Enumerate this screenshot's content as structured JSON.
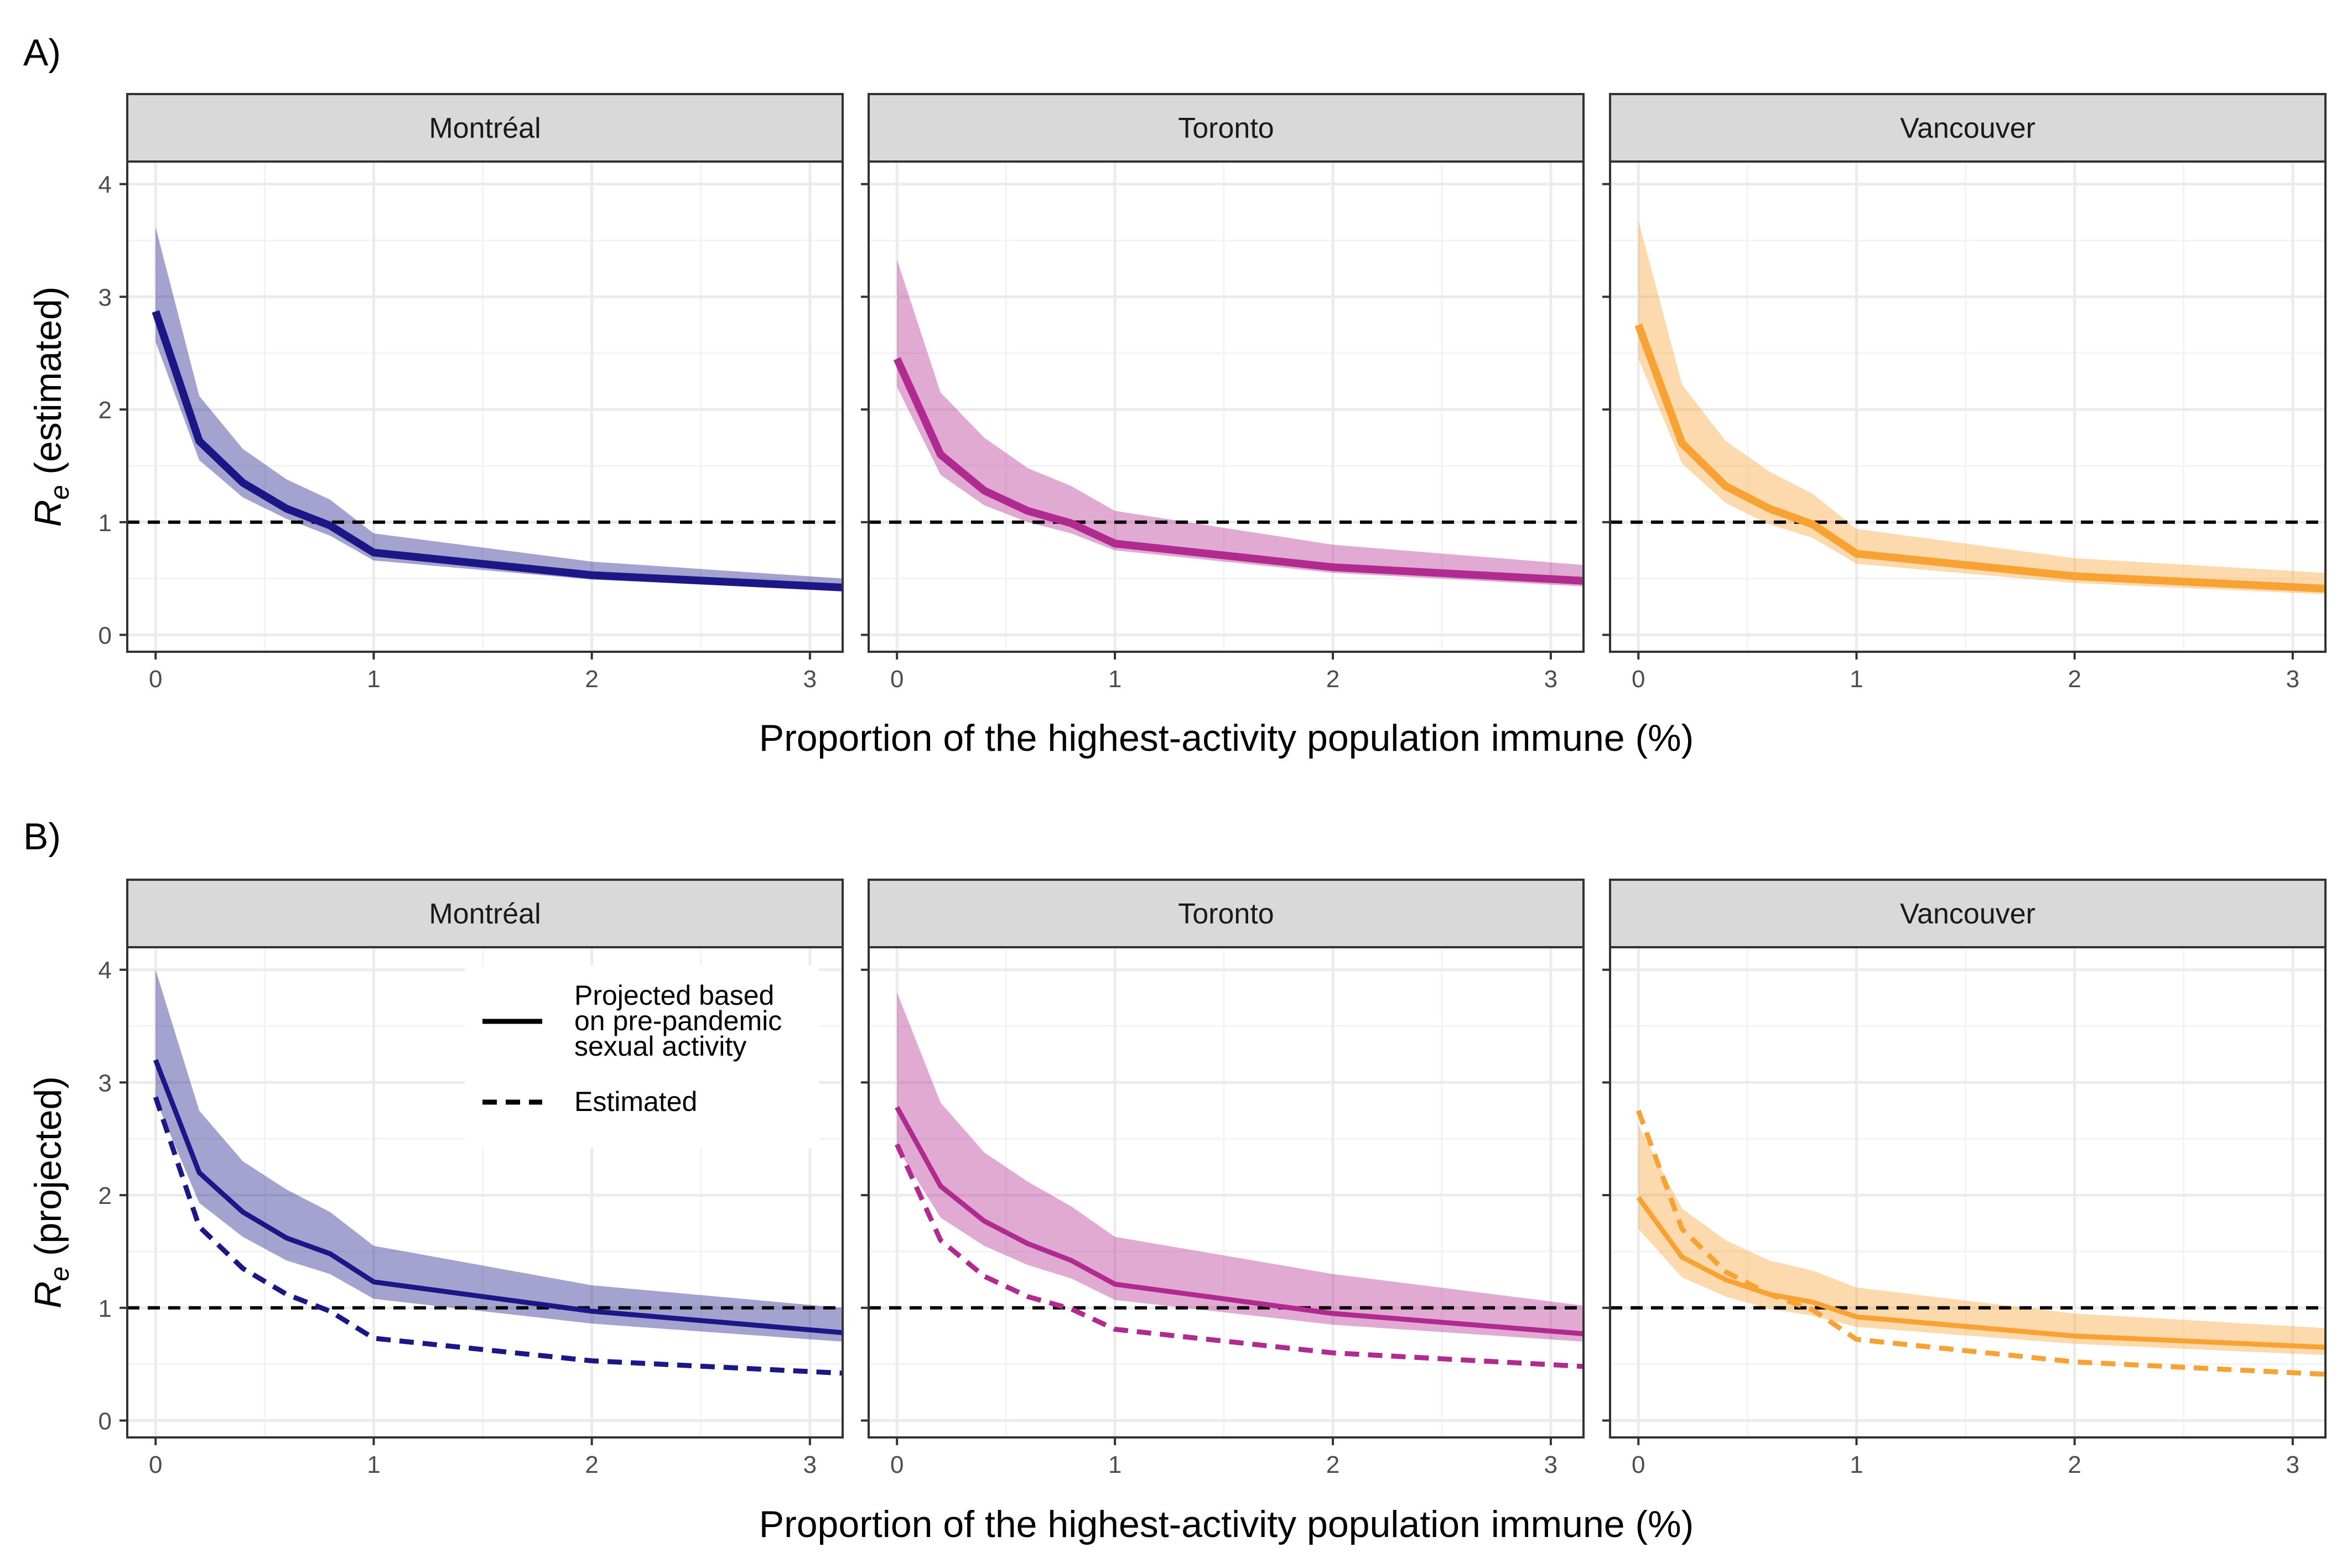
{
  "figure": {
    "panel_labels": [
      "A)",
      "B)"
    ],
    "x_title": "Proportion of the highest-activity population immune (%)",
    "y_title_main": "R",
    "y_title_sub": "e",
    "y_title_rest_A": " (estimated)",
    "y_title_rest_B": " (projected)"
  },
  "legend": {
    "items": [
      {
        "label_lines": [
          "Projected based",
          "on pre-pandemic",
          "sexual activity"
        ],
        "linetype": "solid"
      },
      {
        "label_lines": [
          "Estimated"
        ],
        "linetype": "dashed"
      }
    ]
  },
  "colors": {
    "Montréal": "#1b1787",
    "Toronto": "#b12a90",
    "Vancouver": "#f8a233",
    "strip_bg": "#d9d9d9",
    "grid_major": "#ebebeb",
    "grid_minor": "#f3f3f3",
    "reference_line": "#000000"
  },
  "chart_data": [
    {
      "type": "line",
      "panel": "A)",
      "facets": [
        "Montréal",
        "Toronto",
        "Vancouver"
      ],
      "xlim": [
        -0.13,
        3.15
      ],
      "ylim": [
        -0.15,
        4.2
      ],
      "x_ticks": [
        0,
        1,
        2,
        3
      ],
      "y_ticks": [
        0,
        1,
        2,
        3,
        4
      ],
      "reference_line": {
        "y": 1,
        "style": "dashed"
      },
      "grid": true,
      "x": [
        0,
        0.2,
        0.4,
        0.6,
        0.8,
        1,
        2,
        3.15
      ],
      "series": [
        {
          "facet": "Montréal",
          "linetype": "solid",
          "line_width": "thick",
          "values": [
            2.87,
            1.72,
            1.35,
            1.12,
            0.97,
            0.73,
            0.53,
            0.42
          ],
          "lower": [
            2.6,
            1.55,
            1.22,
            1.03,
            0.88,
            0.66,
            0.49,
            0.39
          ],
          "upper": [
            3.62,
            2.12,
            1.65,
            1.38,
            1.2,
            0.9,
            0.65,
            0.5
          ]
        },
        {
          "facet": "Toronto",
          "linetype": "solid",
          "line_width": "thick",
          "values": [
            2.45,
            1.6,
            1.28,
            1.1,
            0.99,
            0.81,
            0.6,
            0.48
          ],
          "lower": [
            2.2,
            1.42,
            1.15,
            1.0,
            0.9,
            0.75,
            0.55,
            0.43
          ],
          "upper": [
            3.33,
            2.15,
            1.75,
            1.48,
            1.32,
            1.1,
            0.8,
            0.62
          ]
        },
        {
          "facet": "Vancouver",
          "linetype": "solid",
          "line_width": "thick",
          "values": [
            2.75,
            1.7,
            1.32,
            1.12,
            0.98,
            0.72,
            0.52,
            0.41
          ],
          "lower": [
            2.45,
            1.52,
            1.17,
            0.98,
            0.86,
            0.63,
            0.46,
            0.36
          ],
          "upper": [
            3.68,
            2.22,
            1.72,
            1.45,
            1.25,
            0.94,
            0.68,
            0.55
          ]
        }
      ]
    },
    {
      "type": "line",
      "panel": "B)",
      "facets": [
        "Montréal",
        "Toronto",
        "Vancouver"
      ],
      "xlim": [
        -0.13,
        3.15
      ],
      "ylim": [
        -0.15,
        4.2
      ],
      "x_ticks": [
        0,
        1,
        2,
        3
      ],
      "y_ticks": [
        0,
        1,
        2,
        3,
        4
      ],
      "reference_line": {
        "y": 1,
        "style": "dashed"
      },
      "grid": true,
      "legend_position": "inside, top of Montréal panel",
      "x": [
        0,
        0.2,
        0.4,
        0.6,
        0.8,
        1,
        2,
        3.15
      ],
      "series": [
        {
          "facet": "Montréal",
          "linetype": "solid",
          "line_width": "normal",
          "values": [
            3.2,
            2.2,
            1.85,
            1.62,
            1.48,
            1.23,
            0.97,
            0.78
          ],
          "lower": [
            2.85,
            1.93,
            1.63,
            1.42,
            1.3,
            1.08,
            0.86,
            0.7
          ],
          "upper": [
            4.0,
            2.75,
            2.3,
            2.05,
            1.85,
            1.55,
            1.2,
            1.0
          ]
        },
        {
          "facet": "Montréal",
          "linetype": "dashed",
          "line_width": "normal",
          "values": [
            2.87,
            1.72,
            1.35,
            1.12,
            0.97,
            0.73,
            0.53,
            0.42
          ]
        },
        {
          "facet": "Toronto",
          "linetype": "solid",
          "line_width": "normal",
          "values": [
            2.78,
            2.08,
            1.77,
            1.57,
            1.42,
            1.21,
            0.95,
            0.77
          ],
          "lower": [
            2.42,
            1.8,
            1.55,
            1.38,
            1.26,
            1.07,
            0.85,
            0.7
          ],
          "upper": [
            3.8,
            2.82,
            2.38,
            2.12,
            1.9,
            1.63,
            1.3,
            1.02
          ]
        },
        {
          "facet": "Toronto",
          "linetype": "dashed",
          "line_width": "normal",
          "values": [
            2.45,
            1.6,
            1.28,
            1.1,
            0.99,
            0.81,
            0.6,
            0.48
          ]
        },
        {
          "facet": "Vancouver",
          "linetype": "solid",
          "line_width": "normal",
          "values": [
            1.98,
            1.45,
            1.25,
            1.12,
            1.05,
            0.92,
            0.75,
            0.65
          ],
          "lower": [
            1.7,
            1.27,
            1.1,
            0.99,
            0.93,
            0.83,
            0.68,
            0.58
          ],
          "upper": [
            2.62,
            1.88,
            1.6,
            1.42,
            1.33,
            1.18,
            0.95,
            0.82
          ]
        },
        {
          "facet": "Vancouver",
          "linetype": "dashed",
          "line_width": "normal",
          "values": [
            2.75,
            1.7,
            1.32,
            1.12,
            0.98,
            0.72,
            0.52,
            0.41
          ]
        }
      ]
    }
  ]
}
